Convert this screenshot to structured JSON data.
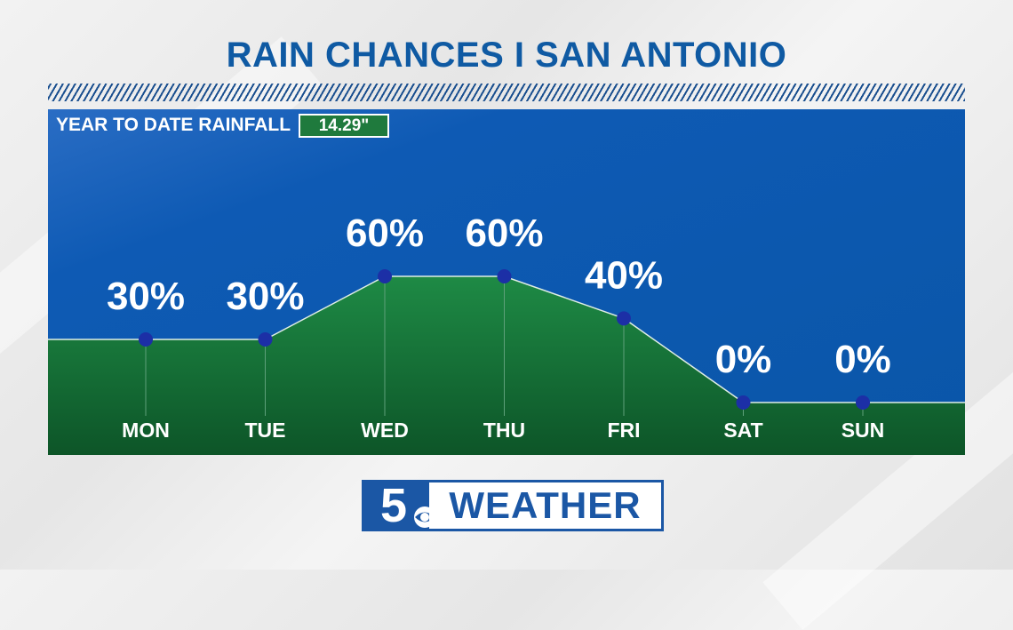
{
  "title": "RAIN CHANCES I SAN ANTONIO",
  "ytd": {
    "label": "YEAR TO DATE RAINFALL",
    "value": "14.29\""
  },
  "brand": {
    "number": "5",
    "word": "WEATHER"
  },
  "colors": {
    "title": "#0f5aa3",
    "panel_blue": "#0a56a8",
    "area_green_top": "#1e8a45",
    "area_green_bottom": "#0d5528",
    "marker": "#1c2fa6",
    "badge_green": "#1f7a3d"
  },
  "chart_data": {
    "type": "area",
    "categories": [
      "MON",
      "TUE",
      "WED",
      "THU",
      "FRI",
      "SAT",
      "SUN"
    ],
    "values": [
      30,
      30,
      60,
      60,
      40,
      0,
      0
    ],
    "data_labels": [
      "30%",
      "30%",
      "60%",
      "60%",
      "40%",
      "0%",
      "0%"
    ],
    "unit": "%",
    "ylim": [
      0,
      100
    ],
    "grid": false,
    "legend": "none"
  }
}
